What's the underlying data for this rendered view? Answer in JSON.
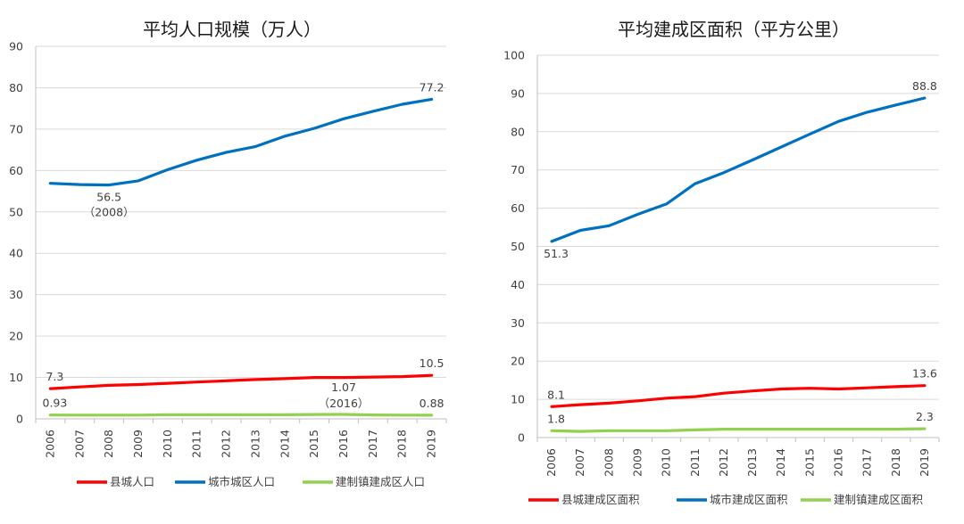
{
  "chart_data": [
    {
      "type": "line",
      "title": "平均人口规模（万人）",
      "xlabel": "",
      "ylabel": "",
      "categories": [
        "2006",
        "2007",
        "2008",
        "2009",
        "2010",
        "2011",
        "2012",
        "2013",
        "2014",
        "2015",
        "2016",
        "2017",
        "2018",
        "2019"
      ],
      "ylim": [
        0,
        90
      ],
      "yticks": [
        0,
        10,
        20,
        30,
        40,
        50,
        60,
        70,
        80,
        90
      ],
      "grid": true,
      "legend_position": "bottom",
      "series": [
        {
          "name": "县城人口",
          "color": "#ff0000",
          "values": [
            7.3,
            7.7,
            8.1,
            8.3,
            8.6,
            8.9,
            9.2,
            9.5,
            9.7,
            10.0,
            10.0,
            10.1,
            10.2,
            10.5
          ]
        },
        {
          "name": "城市城区人口",
          "color": "#0070c0",
          "values": [
            56.9,
            56.6,
            56.5,
            57.5,
            60.2,
            62.5,
            64.4,
            65.8,
            68.3,
            70.2,
            72.5,
            74.3,
            76.0,
            77.2
          ]
        },
        {
          "name": "建制镇建成区人口",
          "color": "#92d050",
          "values": [
            0.93,
            0.9,
            0.9,
            0.9,
            1.0,
            1.0,
            1.0,
            1.0,
            1.0,
            1.05,
            1.07,
            0.95,
            0.9,
            0.88
          ]
        }
      ],
      "annotations": [
        {
          "text": "7.3",
          "series": 0,
          "index": 0,
          "pos": "above"
        },
        {
          "text": "10.5",
          "series": 0,
          "index": 13,
          "pos": "above"
        },
        {
          "text": "77.2",
          "series": 1,
          "index": 13,
          "pos": "above"
        },
        {
          "text": "56.5",
          "series": 1,
          "index": 2,
          "pos": "below"
        },
        {
          "text": "（2008）",
          "series": 1,
          "index": 2,
          "pos": "below2"
        },
        {
          "text": "0.93",
          "series": 2,
          "index": 0,
          "pos": "above"
        },
        {
          "text": "1.07",
          "series": 2,
          "index": 10,
          "pos": "above3"
        },
        {
          "text": "（2016）",
          "series": 2,
          "index": 10,
          "pos": "above2"
        },
        {
          "text": "0.88",
          "series": 2,
          "index": 13,
          "pos": "above"
        }
      ]
    },
    {
      "type": "line",
      "title": "平均建成区面积（平方公里）",
      "xlabel": "",
      "ylabel": "",
      "categories": [
        "2006",
        "2007",
        "2008",
        "2009",
        "2010",
        "2011",
        "2012",
        "2013",
        "2014",
        "2015",
        "2016",
        "2017",
        "2018",
        "2019"
      ],
      "ylim": [
        0,
        100
      ],
      "yticks": [
        0,
        10,
        20,
        30,
        40,
        50,
        60,
        70,
        80,
        90,
        100
      ],
      "grid": true,
      "legend_position": "bottom",
      "series": [
        {
          "name": "县城建成区面积",
          "color": "#ff0000",
          "values": [
            8.1,
            8.6,
            9.0,
            9.6,
            10.3,
            10.7,
            11.6,
            12.2,
            12.7,
            12.9,
            12.7,
            13.0,
            13.3,
            13.6
          ]
        },
        {
          "name": "城市建成区面积",
          "color": "#0070c0",
          "values": [
            51.3,
            54.2,
            55.4,
            58.4,
            61.1,
            66.4,
            69.3,
            72.6,
            76.0,
            79.4,
            82.7,
            85.1,
            87.0,
            88.8
          ]
        },
        {
          "name": "建制镇建成区面积",
          "color": "#92d050",
          "values": [
            1.8,
            1.6,
            1.8,
            1.8,
            1.8,
            2.0,
            2.2,
            2.2,
            2.2,
            2.2,
            2.2,
            2.2,
            2.2,
            2.3
          ]
        }
      ],
      "annotations": [
        {
          "text": "8.1",
          "series": 0,
          "index": 0,
          "pos": "above"
        },
        {
          "text": "13.6",
          "series": 0,
          "index": 13,
          "pos": "above"
        },
        {
          "text": "88.8",
          "series": 1,
          "index": 13,
          "pos": "above"
        },
        {
          "text": "51.3",
          "series": 1,
          "index": 0,
          "pos": "below"
        },
        {
          "text": "1.8",
          "series": 2,
          "index": 0,
          "pos": "above"
        },
        {
          "text": "2.3",
          "series": 2,
          "index": 13,
          "pos": "above"
        }
      ]
    }
  ]
}
